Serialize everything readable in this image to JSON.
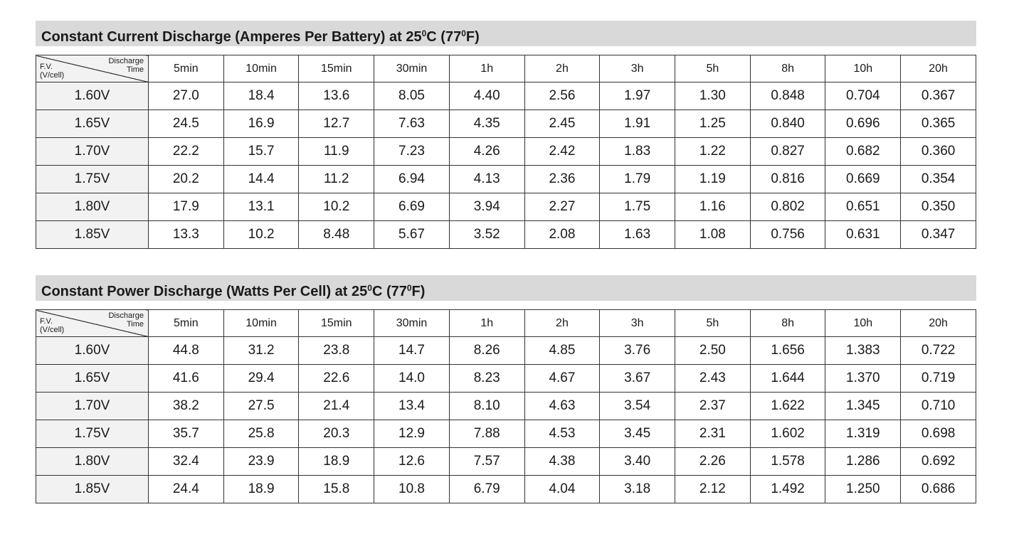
{
  "tables": [
    {
      "title_main": "Constant Current Discharge (Amperes Per Battery) at 25",
      "title_deg1": "0",
      "title_mid": "C (77",
      "title_deg2": "0",
      "title_end": "F)",
      "corner_top_1": "Discharge",
      "corner_top_2": "Time",
      "corner_bottom_1": "F.V.",
      "corner_bottom_2": "(V/cell)",
      "columns": [
        "5min",
        "10min",
        "15min",
        "30min",
        "1h",
        "2h",
        "3h",
        "5h",
        "8h",
        "10h",
        "20h"
      ],
      "rows": [
        {
          "label": "1.60V",
          "values": [
            "27.0",
            "18.4",
            "13.6",
            "8.05",
            "4.40",
            "2.56",
            "1.97",
            "1.30",
            "0.848",
            "0.704",
            "0.367"
          ]
        },
        {
          "label": "1.65V",
          "values": [
            "24.5",
            "16.9",
            "12.7",
            "7.63",
            "4.35",
            "2.45",
            "1.91",
            "1.25",
            "0.840",
            "0.696",
            "0.365"
          ]
        },
        {
          "label": "1.70V",
          "values": [
            "22.2",
            "15.7",
            "11.9",
            "7.23",
            "4.26",
            "2.42",
            "1.83",
            "1.22",
            "0.827",
            "0.682",
            "0.360"
          ]
        },
        {
          "label": "1.75V",
          "values": [
            "20.2",
            "14.4",
            "11.2",
            "6.94",
            "4.13",
            "2.36",
            "1.79",
            "1.19",
            "0.816",
            "0.669",
            "0.354"
          ]
        },
        {
          "label": "1.80V",
          "values": [
            "17.9",
            "13.1",
            "10.2",
            "6.69",
            "3.94",
            "2.27",
            "1.75",
            "1.16",
            "0.802",
            "0.651",
            "0.350"
          ]
        },
        {
          "label": "1.85V",
          "values": [
            "13.3",
            "10.2",
            "8.48",
            "5.67",
            "3.52",
            "2.08",
            "1.63",
            "1.08",
            "0.756",
            "0.631",
            "0.347"
          ]
        }
      ]
    },
    {
      "title_main": "Constant Power Discharge (Watts Per Cell) at 25",
      "title_deg1": "0",
      "title_mid": "C (77",
      "title_deg2": "0",
      "title_end": "F)",
      "corner_top_1": "Discharge",
      "corner_top_2": "Time",
      "corner_bottom_1": "F.V.",
      "corner_bottom_2": "(V/cell)",
      "columns": [
        "5min",
        "10min",
        "15min",
        "30min",
        "1h",
        "2h",
        "3h",
        "5h",
        "8h",
        "10h",
        "20h"
      ],
      "rows": [
        {
          "label": "1.60V",
          "values": [
            "44.8",
            "31.2",
            "23.8",
            "14.7",
            "8.26",
            "4.85",
            "3.76",
            "2.50",
            "1.656",
            "1.383",
            "0.722"
          ]
        },
        {
          "label": "1.65V",
          "values": [
            "41.6",
            "29.4",
            "22.6",
            "14.0",
            "8.23",
            "4.67",
            "3.67",
            "2.43",
            "1.644",
            "1.370",
            "0.719"
          ]
        },
        {
          "label": "1.70V",
          "values": [
            "38.2",
            "27.5",
            "21.4",
            "13.4",
            "8.10",
            "4.63",
            "3.54",
            "2.37",
            "1.622",
            "1.345",
            "0.710"
          ]
        },
        {
          "label": "1.75V",
          "values": [
            "35.7",
            "25.8",
            "20.3",
            "12.9",
            "7.88",
            "4.53",
            "3.45",
            "2.31",
            "1.602",
            "1.319",
            "0.698"
          ]
        },
        {
          "label": "1.80V",
          "values": [
            "32.4",
            "23.9",
            "18.9",
            "12.6",
            "7.57",
            "4.38",
            "3.40",
            "2.26",
            "1.578",
            "1.286",
            "0.692"
          ]
        },
        {
          "label": "1.85V",
          "values": [
            "24.4",
            "18.9",
            "15.8",
            "10.8",
            "6.79",
            "4.04",
            "3.18",
            "2.12",
            "1.492",
            "1.250",
            "0.686"
          ]
        }
      ]
    }
  ]
}
